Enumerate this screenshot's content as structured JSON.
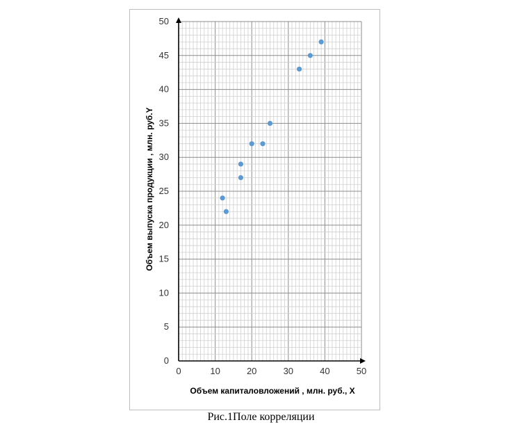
{
  "chart_data": {
    "type": "scatter",
    "xlabel": "Объем капиталовложений , млн. руб., Х",
    "ylabel": "Объем выпуска продукции , млн. руб.Y",
    "xlim": [
      0,
      50
    ],
    "ylim": [
      0,
      50
    ],
    "x_ticks": [
      "0",
      "10",
      "20",
      "30",
      "40",
      "50"
    ],
    "y_ticks": [
      "0",
      "5",
      "10",
      "15",
      "20",
      "25",
      "30",
      "35",
      "40",
      "45",
      "50"
    ],
    "grid": true,
    "legend": "none",
    "point_color": "#5b9bd5",
    "points": [
      {
        "x": 12,
        "y": 24
      },
      {
        "x": 13,
        "y": 22
      },
      {
        "x": 17,
        "y": 27
      },
      {
        "x": 17,
        "y": 29
      },
      {
        "x": 20,
        "y": 32
      },
      {
        "x": 23,
        "y": 32
      },
      {
        "x": 25,
        "y": 35
      },
      {
        "x": 33,
        "y": 43
      },
      {
        "x": 36,
        "y": 45
      },
      {
        "x": 39,
        "y": 47
      }
    ]
  },
  "caption": "Рис.1Поле корреляции"
}
